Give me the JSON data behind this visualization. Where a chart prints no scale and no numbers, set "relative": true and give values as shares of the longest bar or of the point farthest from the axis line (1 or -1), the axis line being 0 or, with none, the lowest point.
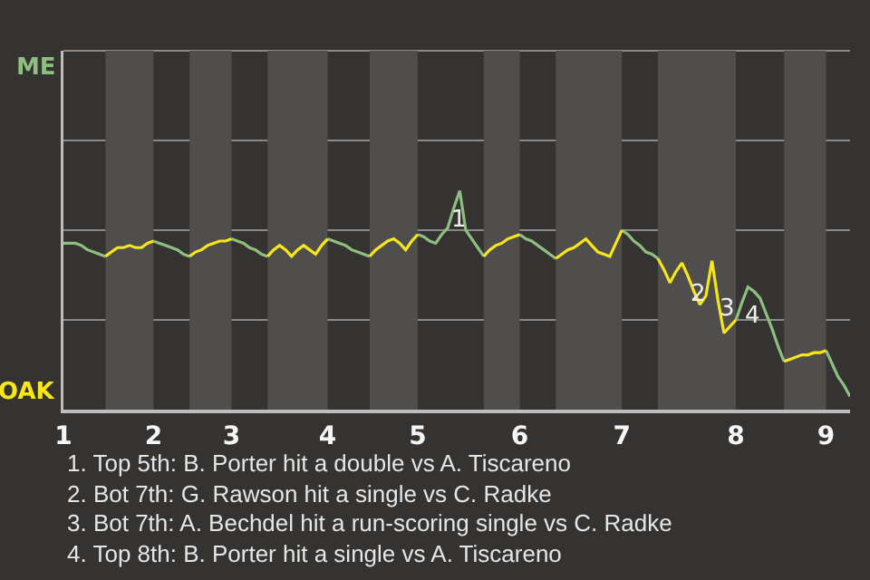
{
  "chart_data": {
    "type": "line",
    "relative": true,
    "categories": [
      "1",
      null,
      null,
      null,
      null,
      null,
      null,
      null,
      null,
      null,
      null,
      null,
      null,
      null,
      null,
      "2",
      null,
      null,
      null,
      null,
      null,
      null,
      null,
      null,
      null,
      null,
      null,
      null,
      "3",
      null,
      null,
      null,
      null,
      null,
      null,
      null,
      null,
      null,
      null,
      null,
      null,
      null,
      null,
      null,
      "4",
      null,
      null,
      null,
      null,
      null,
      null,
      null,
      null,
      null,
      null,
      null,
      null,
      null,
      null,
      "5",
      null,
      null,
      null,
      null,
      null,
      null,
      null,
      null,
      null,
      null,
      null,
      null,
      null,
      null,
      null,
      null,
      "6",
      null,
      null,
      null,
      null,
      null,
      null,
      null,
      null,
      null,
      null,
      null,
      null,
      null,
      null,
      null,
      null,
      "7",
      null,
      null,
      null,
      null,
      null,
      null,
      null,
      null,
      null,
      null,
      null,
      null,
      null,
      null,
      null,
      null,
      null,
      null,
      "8",
      null,
      null,
      null,
      null,
      null,
      null,
      null,
      null,
      null,
      null,
      null,
      null,
      null,
      null,
      "9",
      null,
      null,
      null,
      null
    ],
    "series": [
      {
        "color": "#8fbf80",
        "values": [
          0.76,
          0.76,
          0.76,
          0.75,
          0.73,
          0.72,
          0.71,
          0.7,
          null,
          null,
          null,
          null,
          null,
          null,
          null,
          0.77,
          0.76,
          0.75,
          0.74,
          0.73,
          0.71,
          0.7,
          null,
          null,
          null,
          null,
          null,
          null,
          0.78,
          0.77,
          0.76,
          0.74,
          0.73,
          0.71,
          0.7,
          null,
          null,
          null,
          null,
          null,
          null,
          null,
          null,
          null,
          0.78,
          0.77,
          0.76,
          0.75,
          0.73,
          0.72,
          0.71,
          0.7,
          null,
          null,
          null,
          null,
          null,
          null,
          null,
          0.8,
          0.79,
          0.77,
          0.76,
          0.8,
          0.83,
          0.92,
          1,
          0.82,
          0.78,
          0.74,
          0.7,
          null,
          null,
          null,
          null,
          null,
          0.8,
          0.78,
          0.77,
          0.75,
          0.73,
          0.71,
          0.69,
          null,
          null,
          null,
          null,
          null,
          null,
          null,
          null,
          null,
          null,
          0.82,
          0.8,
          0.77,
          0.75,
          0.72,
          0.71,
          0.69,
          null,
          null,
          null,
          null,
          null,
          null,
          null,
          null,
          null,
          null,
          null,
          null,
          0.41,
          0.49,
          0.56,
          0.54,
          0.51,
          0.44,
          0.37,
          0.29,
          0.22,
          null,
          null,
          null,
          null,
          null,
          null,
          0.27,
          0.21,
          0.15,
          0.11,
          0.06
        ]
      },
      {
        "color": "#f7e71a",
        "values": [
          null,
          null,
          null,
          null,
          null,
          null,
          null,
          0.7,
          0.72,
          0.74,
          0.74,
          0.75,
          0.74,
          0.74,
          0.76,
          0.77,
          null,
          null,
          null,
          null,
          null,
          0.7,
          0.72,
          0.73,
          0.75,
          0.76,
          0.77,
          0.77,
          0.78,
          null,
          null,
          null,
          null,
          null,
          0.7,
          0.73,
          0.75,
          0.73,
          0.7,
          0.73,
          0.75,
          0.73,
          0.71,
          0.75,
          0.78,
          null,
          null,
          null,
          null,
          null,
          null,
          0.7,
          0.73,
          0.75,
          0.77,
          0.78,
          0.76,
          0.73,
          0.77,
          0.8,
          null,
          null,
          null,
          null,
          null,
          null,
          null,
          null,
          null,
          null,
          0.7,
          0.73,
          0.75,
          0.76,
          0.78,
          0.79,
          0.8,
          null,
          null,
          null,
          null,
          null,
          0.69,
          0.71,
          0.73,
          0.74,
          0.76,
          0.78,
          0.75,
          0.72,
          0.71,
          0.7,
          0.76,
          0.82,
          null,
          null,
          null,
          null,
          null,
          0.69,
          0.64,
          0.58,
          0.63,
          0.67,
          0.61,
          0.54,
          0.48,
          0.52,
          0.68,
          0.5,
          0.35,
          0.38,
          0.41,
          null,
          null,
          null,
          null,
          null,
          null,
          null,
          0.22,
          0.23,
          0.24,
          0.25,
          0.25,
          0.26,
          0.26,
          0.27,
          null,
          null,
          null,
          null
        ]
      }
    ],
    "marker": "none",
    "line_style": "solid",
    "ref_lines": [
      {
        "axis": "y",
        "value": 0.41,
        "color": "#8a8a8a"
      },
      {
        "axis": "y",
        "value": 0.82,
        "color": "#8a8a8a"
      },
      {
        "axis": "y",
        "value": 1.23,
        "color": "#8a8a8a"
      }
    ],
    "annotations": [
      "1",
      "2",
      "3",
      "4",
      "ME",
      "OAK",
      "1. Top 5th: B. Porter hit a double vs A. Tiscareno",
      "2. Bot 7th: G. Rawson hit a single vs C. Radke",
      "3. Bot 7th: A. Bechdel hit a run-scoring single vs C. Radke",
      "4. Top 8th: B. Porter hit a single vs A. Tiscareno"
    ]
  }
}
